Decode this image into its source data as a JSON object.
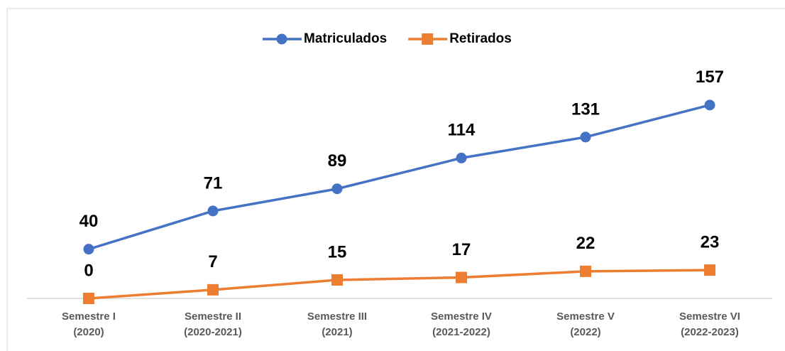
{
  "chart_data": {
    "type": "line",
    "categories": [
      "Semestre I\n(2020)",
      "Semestre II\n(2020-2021)",
      "Semestre III\n(2021)",
      "Semestre IV\n(2021-2022)",
      "Semestre V\n(2022)",
      "Semestre VI\n(2022-2023)"
    ],
    "series": [
      {
        "name": "Matriculados",
        "color": "#4472c4",
        "marker": "circle",
        "values": [
          40,
          71,
          89,
          114,
          131,
          157
        ]
      },
      {
        "name": "Retirados",
        "color": "#ed7d31",
        "marker": "square",
        "values": [
          0,
          7,
          15,
          17,
          22,
          23
        ]
      }
    ],
    "ylim": [
      0,
      180
    ],
    "legend": "top",
    "grid": false
  }
}
